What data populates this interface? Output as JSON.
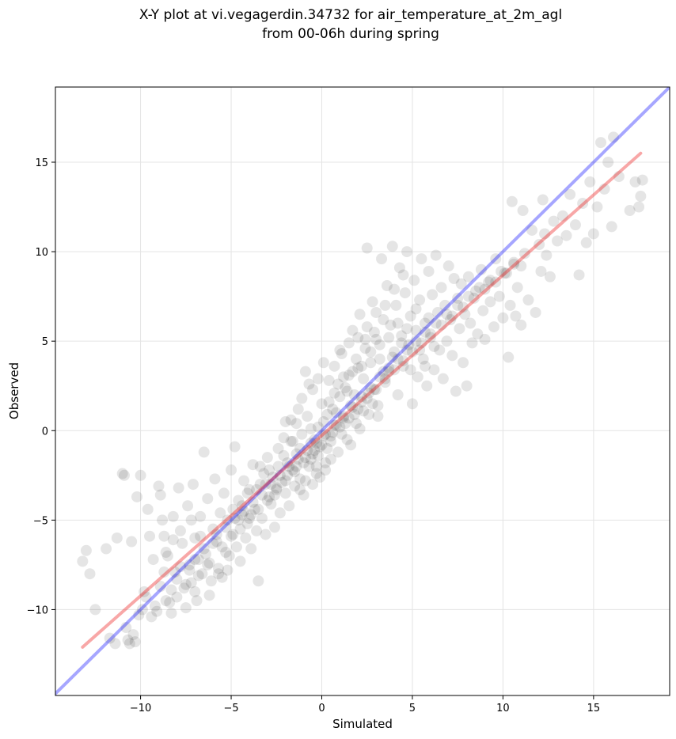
{
  "chart_data": {
    "type": "scatter",
    "title": [
      "X-Y plot at vi.vegagerdin.34732 for air_temperature_at_2m_agl",
      "from 00-06h during spring"
    ],
    "xlabel": "Simulated",
    "ylabel": "Observed",
    "xlim": [
      -14.7,
      19.2
    ],
    "ylim": [
      -14.8,
      19.2
    ],
    "xticks": [
      -10,
      -5,
      0,
      5,
      10,
      15
    ],
    "xtick_labels": [
      "−10",
      "−5",
      "0",
      "5",
      "10",
      "15"
    ],
    "yticks": [
      -10,
      -5,
      0,
      5,
      10,
      15
    ],
    "ytick_labels": [
      "−10",
      "−5",
      "0",
      "5",
      "10",
      "15"
    ],
    "grid": true,
    "marker_color": "#000000",
    "marker_alpha": 0.1,
    "identity_line": {
      "color": "#0000ff",
      "x": [
        -14.7,
        19.2
      ],
      "y": [
        -14.7,
        19.2
      ]
    },
    "fit_line": {
      "color": "#ee2222",
      "x": [
        -13.2,
        17.6
      ],
      "y": [
        -12.1,
        15.5
      ]
    },
    "points": [
      [
        -13.2,
        -7.3
      ],
      [
        -13.0,
        -6.7
      ],
      [
        -12.8,
        -8.0
      ],
      [
        -12.5,
        -10.0
      ],
      [
        -11.9,
        -6.6
      ],
      [
        -11.7,
        -11.6
      ],
      [
        -11.4,
        -11.9
      ],
      [
        -11.3,
        -6.0
      ],
      [
        -11.0,
        -2.4
      ],
      [
        -10.9,
        -2.5
      ],
      [
        -10.8,
        -11.0
      ],
      [
        -10.7,
        -11.7
      ],
      [
        -10.6,
        -11.9
      ],
      [
        -10.4,
        -11.4
      ],
      [
        -10.3,
        -11.8
      ],
      [
        -10.5,
        -6.2
      ],
      [
        -10.2,
        -3.7
      ],
      [
        -10.1,
        -10.3
      ],
      [
        -10.0,
        -2.5
      ],
      [
        -9.8,
        -9.0
      ],
      [
        -9.6,
        -4.4
      ],
      [
        -9.5,
        -5.9
      ],
      [
        -9.3,
        -7.2
      ],
      [
        -9.1,
        -10.1
      ],
      [
        -9.0,
        -3.1
      ],
      [
        -8.9,
        -3.6
      ],
      [
        -8.8,
        -5.0
      ],
      [
        -8.7,
        -5.9
      ],
      [
        -8.6,
        -6.8
      ],
      [
        -8.5,
        -7.0
      ],
      [
        -8.4,
        -9.6
      ],
      [
        -8.3,
        -10.2
      ],
      [
        -8.2,
        -4.8
      ],
      [
        -8.1,
        -7.9
      ],
      [
        -8.0,
        -9.3
      ],
      [
        -7.9,
        -3.2
      ],
      [
        -7.8,
        -5.6
      ],
      [
        -7.7,
        -6.3
      ],
      [
        -7.6,
        -8.8
      ],
      [
        -7.5,
        -9.9
      ],
      [
        -7.4,
        -4.2
      ],
      [
        -7.3,
        -7.5
      ],
      [
        -7.2,
        -8.5
      ],
      [
        -7.1,
        -3.0
      ],
      [
        -7.0,
        -6.0
      ],
      [
        -6.9,
        -9.5
      ],
      [
        -6.8,
        -7.2
      ],
      [
        -6.7,
        -4.8
      ],
      [
        -6.6,
        -8.0
      ],
      [
        -6.5,
        -1.2
      ],
      [
        -6.4,
        -6.9
      ],
      [
        -6.3,
        -3.8
      ],
      [
        -6.2,
        -7.4
      ],
      [
        -6.1,
        -8.4
      ],
      [
        -6.0,
        -5.5
      ],
      [
        -5.9,
        -2.7
      ],
      [
        -5.8,
        -6.2
      ],
      [
        -5.7,
        -7.7
      ],
      [
        -5.6,
        -4.6
      ],
      [
        -5.5,
        -8.2
      ],
      [
        -5.4,
        -3.5
      ],
      [
        -5.3,
        -6.8
      ],
      [
        -5.2,
        -5.0
      ],
      [
        -5.1,
        -7.0
      ],
      [
        -5.0,
        -2.2
      ],
      [
        -4.9,
        -5.8
      ],
      [
        -4.8,
        -0.9
      ],
      [
        -4.7,
        -6.5
      ],
      [
        -4.6,
        -3.9
      ],
      [
        -4.5,
        -7.3
      ],
      [
        -4.4,
        -4.7
      ],
      [
        -4.3,
        -2.8
      ],
      [
        -4.2,
        -6.0
      ],
      [
        -4.1,
        -5.2
      ],
      [
        -4.0,
        -3.3
      ],
      [
        -3.9,
        -6.6
      ],
      [
        -3.8,
        -1.9
      ],
      [
        -3.7,
        -4.4
      ],
      [
        -3.6,
        -5.6
      ],
      [
        -3.5,
        -8.4
      ],
      [
        -3.4,
        -3.0
      ],
      [
        -3.3,
        -4.9
      ],
      [
        -3.2,
        -2.4
      ],
      [
        -3.1,
        -5.8
      ],
      [
        -3.0,
        -1.5
      ],
      [
        -2.9,
        -3.7
      ],
      [
        -2.8,
        -4.1
      ],
      [
        -2.7,
        -2.6
      ],
      [
        -2.6,
        -5.4
      ],
      [
        -2.5,
        -3.2
      ],
      [
        -2.4,
        -1.0
      ],
      [
        -2.3,
        -4.6
      ],
      [
        -2.2,
        -2.9
      ],
      [
        -2.1,
        -0.4
      ],
      [
        -2.0,
        -3.5
      ],
      [
        -1.9,
        -1.8
      ],
      [
        -1.8,
        -4.2
      ],
      [
        -1.7,
        0.6
      ],
      [
        -1.6,
        -2.2
      ],
      [
        -1.5,
        -3.1
      ],
      [
        -1.4,
        -1.3
      ],
      [
        -1.3,
        1.2
      ],
      [
        -1.2,
        -2.7
      ],
      [
        -1.1,
        -0.2
      ],
      [
        -1.0,
        -3.6
      ],
      [
        -0.9,
        -1.5
      ],
      [
        -0.8,
        0.8
      ],
      [
        -0.7,
        -2.0
      ],
      [
        -0.6,
        -0.7
      ],
      [
        -0.5,
        2.3
      ],
      [
        -0.4,
        -1.1
      ],
      [
        -0.3,
        -2.4
      ],
      [
        -0.2,
        0.2
      ],
      [
        -0.1,
        -0.9
      ],
      [
        0.0,
        1.5
      ],
      [
        0.1,
        -0.3
      ],
      [
        0.2,
        -1.8
      ],
      [
        0.3,
        0.9
      ],
      [
        0.4,
        2.8
      ],
      [
        0.5,
        -0.6
      ],
      [
        0.6,
        1.2
      ],
      [
        0.7,
        3.6
      ],
      [
        0.8,
        0.3
      ],
      [
        0.9,
        -1.2
      ],
      [
        1.0,
        1.9
      ],
      [
        1.1,
        4.3
      ],
      [
        1.2,
        0.7
      ],
      [
        1.3,
        2.4
      ],
      [
        1.4,
        -0.5
      ],
      [
        1.5,
        3.1
      ],
      [
        1.6,
        1.4
      ],
      [
        1.7,
        5.6
      ],
      [
        1.8,
        2.0
      ],
      [
        1.9,
        0.4
      ],
      [
        2.0,
        3.5
      ],
      [
        2.1,
        6.5
      ],
      [
        2.2,
        1.6
      ],
      [
        2.3,
        2.9
      ],
      [
        2.4,
        4.6
      ],
      [
        2.5,
        10.2
      ],
      [
        2.6,
        0.9
      ],
      [
        2.7,
        3.8
      ],
      [
        2.8,
        7.2
      ],
      [
        2.9,
        2.3
      ],
      [
        3.0,
        5.1
      ],
      [
        3.1,
        1.4
      ],
      [
        3.2,
        4.0
      ],
      [
        3.3,
        9.6
      ],
      [
        3.4,
        6.2
      ],
      [
        3.5,
        2.7
      ],
      [
        3.6,
        8.1
      ],
      [
        3.7,
        3.3
      ],
      [
        3.8,
        5.9
      ],
      [
        3.9,
        10.3
      ],
      [
        4.0,
        4.4
      ],
      [
        4.1,
        7.0
      ],
      [
        4.2,
        2.0
      ],
      [
        4.3,
        9.1
      ],
      [
        4.4,
        5.3
      ],
      [
        4.5,
        3.6
      ],
      [
        4.6,
        7.7
      ],
      [
        4.7,
        10.0
      ],
      [
        4.8,
        4.8
      ],
      [
        4.9,
        6.4
      ],
      [
        5.0,
        1.5
      ],
      [
        5.1,
        8.4
      ],
      [
        5.2,
        5.6
      ],
      [
        5.3,
        3.0
      ],
      [
        5.4,
        7.3
      ],
      [
        5.5,
        9.6
      ],
      [
        5.6,
        4.0
      ],
      [
        5.7,
        6.0
      ],
      [
        5.8,
        2.5
      ],
      [
        5.9,
        8.9
      ],
      [
        6.0,
        5.2
      ],
      [
        6.1,
        7.6
      ],
      [
        6.2,
        3.4
      ],
      [
        6.3,
        9.8
      ],
      [
        6.4,
        6.6
      ],
      [
        6.5,
        4.5
      ],
      [
        6.6,
        8.0
      ],
      [
        6.7,
        2.9
      ],
      [
        6.8,
        7.0
      ],
      [
        6.9,
        5.0
      ],
      [
        7.0,
        9.2
      ],
      [
        7.1,
        6.2
      ],
      [
        7.2,
        4.2
      ],
      [
        7.3,
        8.5
      ],
      [
        7.4,
        2.2
      ],
      [
        7.5,
        7.4
      ],
      [
        7.6,
        5.7
      ],
      [
        7.7,
        8.2
      ],
      [
        7.8,
        3.8
      ],
      [
        7.9,
        6.5
      ],
      [
        8.0,
        2.5
      ],
      [
        8.1,
        8.6
      ],
      [
        8.2,
        6.0
      ],
      [
        8.3,
        4.9
      ],
      [
        8.5,
        7.8
      ],
      [
        8.6,
        5.4
      ],
      [
        8.8,
        9.0
      ],
      [
        8.9,
        6.7
      ],
      [
        9.0,
        5.1
      ],
      [
        9.2,
        8.3
      ],
      [
        9.3,
        7.2
      ],
      [
        9.5,
        5.8
      ],
      [
        9.6,
        9.6
      ],
      [
        9.8,
        7.5
      ],
      [
        10.0,
        6.3
      ],
      [
        10.1,
        8.8
      ],
      [
        10.3,
        4.1
      ],
      [
        10.4,
        7.0
      ],
      [
        10.5,
        12.8
      ],
      [
        10.6,
        9.4
      ],
      [
        10.7,
        6.4
      ],
      [
        10.8,
        8.0
      ],
      [
        11.0,
        5.9
      ],
      [
        11.1,
        12.3
      ],
      [
        11.2,
        9.9
      ],
      [
        11.4,
        7.3
      ],
      [
        11.6,
        11.2
      ],
      [
        11.8,
        6.6
      ],
      [
        12.0,
        10.4
      ],
      [
        12.1,
        8.9
      ],
      [
        12.2,
        12.9
      ],
      [
        12.3,
        11.0
      ],
      [
        12.4,
        9.8
      ],
      [
        12.6,
        8.6
      ],
      [
        12.8,
        11.7
      ],
      [
        13.0,
        10.6
      ],
      [
        13.3,
        12.0
      ],
      [
        13.5,
        10.9
      ],
      [
        13.7,
        13.2
      ],
      [
        14.0,
        11.5
      ],
      [
        14.2,
        8.7
      ],
      [
        14.4,
        12.7
      ],
      [
        14.6,
        10.5
      ],
      [
        14.8,
        13.9
      ],
      [
        15.0,
        11.0
      ],
      [
        15.2,
        12.5
      ],
      [
        15.4,
        16.1
      ],
      [
        15.6,
        13.5
      ],
      [
        15.8,
        15.0
      ],
      [
        16.0,
        11.4
      ],
      [
        16.1,
        16.4
      ],
      [
        16.4,
        14.2
      ],
      [
        17.0,
        12.3
      ],
      [
        17.3,
        13.9
      ],
      [
        17.5,
        12.5
      ],
      [
        17.6,
        13.1
      ],
      [
        17.7,
        14.0
      ],
      [
        -9.9,
        -10.0
      ],
      [
        -9.7,
        -9.3
      ],
      [
        -9.4,
        -10.4
      ],
      [
        -9.2,
        -9.8
      ],
      [
        -8.9,
        -8.7
      ],
      [
        -8.6,
        -9.5
      ],
      [
        -8.3,
        -8.9
      ],
      [
        -8.0,
        -8.3
      ],
      [
        -7.8,
        -7.6
      ],
      [
        -7.5,
        -8.6
      ],
      [
        -7.3,
        -7.8
      ],
      [
        -7.0,
        -7.2
      ],
      [
        -6.8,
        -8.1
      ],
      [
        -6.5,
        -6.6
      ],
      [
        -6.3,
        -7.5
      ],
      [
        -6.0,
        -6.3
      ],
      [
        -5.8,
        -5.8
      ],
      [
        -5.5,
        -6.5
      ],
      [
        -5.3,
        -5.4
      ],
      [
        -5.0,
        -5.9
      ],
      [
        -4.8,
        -4.9
      ],
      [
        -4.5,
        -5.5
      ],
      [
        -4.3,
        -4.5
      ],
      [
        -4.0,
        -4.9
      ],
      [
        -3.8,
        -4.0
      ],
      [
        -3.5,
        -4.4
      ],
      [
        -3.3,
        -3.6
      ],
      [
        -3.0,
        -3.9
      ],
      [
        -2.8,
        -3.0
      ],
      [
        -2.5,
        -3.3
      ],
      [
        -2.3,
        -2.5
      ],
      [
        -2.0,
        -2.8
      ],
      [
        -1.8,
        -2.0
      ],
      [
        -1.5,
        -2.3
      ],
      [
        -1.3,
        -1.6
      ],
      [
        -1.0,
        -1.8
      ],
      [
        -0.8,
        -1.1
      ],
      [
        -0.5,
        -1.3
      ],
      [
        -0.3,
        -0.7
      ],
      [
        0.0,
        -0.8
      ],
      [
        0.2,
        -0.2
      ],
      [
        0.5,
        -0.3
      ],
      [
        0.7,
        0.3
      ],
      [
        1.0,
        0.2
      ],
      [
        1.2,
        0.8
      ],
      [
        1.5,
        0.7
      ],
      [
        1.7,
        1.3
      ],
      [
        2.0,
        1.2
      ],
      [
        2.2,
        1.9
      ],
      [
        2.5,
        1.8
      ],
      [
        2.7,
        2.4
      ],
      [
        3.0,
        2.3
      ],
      [
        3.2,
        3.0
      ],
      [
        3.5,
        2.9
      ],
      [
        3.7,
        3.5
      ],
      [
        4.0,
        3.4
      ],
      [
        4.2,
        4.0
      ],
      [
        4.5,
        3.9
      ],
      [
        4.7,
        4.5
      ],
      [
        5.0,
        4.4
      ],
      [
        5.2,
        5.0
      ],
      [
        5.5,
        4.9
      ],
      [
        5.7,
        5.5
      ],
      [
        6.0,
        5.4
      ],
      [
        6.3,
        6.0
      ],
      [
        6.6,
        5.9
      ],
      [
        6.9,
        6.5
      ],
      [
        7.2,
        6.4
      ],
      [
        7.5,
        7.0
      ],
      [
        7.8,
        6.9
      ],
      [
        8.1,
        7.5
      ],
      [
        8.4,
        7.4
      ],
      [
        8.7,
        8.0
      ],
      [
        9.0,
        7.9
      ],
      [
        9.3,
        8.4
      ],
      [
        9.6,
        8.3
      ],
      [
        9.9,
        8.9
      ],
      [
        10.2,
        8.8
      ],
      [
        10.6,
        9.3
      ],
      [
        11.0,
        9.2
      ],
      [
        -0.6,
        0.1
      ],
      [
        -0.4,
        -0.5
      ],
      [
        -0.2,
        -1.4
      ],
      [
        0.1,
        0.5
      ],
      [
        0.3,
        -1.0
      ],
      [
        0.6,
        -0.1
      ],
      [
        0.8,
        1.0
      ],
      [
        1.1,
        -0.2
      ],
      [
        1.3,
        0.4
      ],
      [
        1.6,
        -0.8
      ],
      [
        1.8,
        0.9
      ],
      [
        2.1,
        0.1
      ],
      [
        2.3,
        1.1
      ],
      [
        2.6,
        2.1
      ],
      [
        2.8,
        1.5
      ],
      [
        3.1,
        0.8
      ],
      [
        -1.2,
        -1.0
      ],
      [
        -1.4,
        -2.0
      ],
      [
        -1.6,
        -0.6
      ],
      [
        -1.9,
        -2.5
      ],
      [
        -2.1,
        -1.4
      ],
      [
        -2.4,
        -2.0
      ],
      [
        -2.6,
        -3.6
      ],
      [
        -2.9,
        -2.2
      ],
      [
        -3.1,
        -3.0
      ],
      [
        -3.4,
        -2.0
      ],
      [
        -3.6,
        -3.3
      ],
      [
        -3.9,
        -4.7
      ],
      [
        -4.1,
        -3.5
      ],
      [
        -4.4,
        -4.2
      ],
      [
        -4.6,
        -5.0
      ],
      [
        -4.9,
        -4.4
      ],
      [
        0.4,
        1.6
      ],
      [
        0.7,
        2.1
      ],
      [
        0.9,
        2.6
      ],
      [
        1.2,
        3.0
      ],
      [
        1.4,
        2.2
      ],
      [
        1.7,
        3.3
      ],
      [
        1.9,
        4.0
      ],
      [
        2.2,
        3.6
      ],
      [
        2.4,
        5.1
      ],
      [
        2.7,
        4.4
      ],
      [
        2.9,
        5.5
      ],
      [
        3.2,
        4.8
      ],
      [
        3.4,
        3.3
      ],
      [
        3.7,
        5.2
      ],
      [
        3.9,
        4.1
      ],
      [
        4.2,
        6.0
      ],
      [
        4.4,
        4.9
      ],
      [
        4.7,
        5.7
      ],
      [
        4.9,
        3.4
      ],
      [
        5.2,
        6.8
      ],
      [
        5.4,
        4.5
      ],
      [
        5.7,
        3.6
      ],
      [
        5.9,
        6.3
      ],
      [
        6.2,
        4.7
      ],
      [
        -0.2,
        2.9
      ],
      [
        0.1,
        3.8
      ],
      [
        -0.7,
        2.6
      ],
      [
        -0.9,
        3.3
      ],
      [
        -1.1,
        1.8
      ],
      [
        -1.4,
        0.4
      ],
      [
        -1.7,
        -0.6
      ],
      [
        -2.0,
        0.5
      ],
      [
        -0.3,
        -2.0
      ],
      [
        -0.6,
        -1.6
      ],
      [
        -0.9,
        -2.8
      ],
      [
        -1.2,
        -3.3
      ],
      [
        -0.1,
        -2.6
      ],
      [
        0.2,
        -2.2
      ],
      [
        0.5,
        -1.6
      ],
      [
        -0.5,
        -3.0
      ],
      [
        1.0,
        4.5
      ],
      [
        1.5,
        4.9
      ],
      [
        2.0,
        5.2
      ],
      [
        2.5,
        5.8
      ],
      [
        3.0,
        6.6
      ],
      [
        3.5,
        7.0
      ],
      [
        4.0,
        7.9
      ],
      [
        4.5,
        8.7
      ],
      [
        -7.0,
        -9.0
      ],
      [
        -6.2,
        -9.2
      ],
      [
        -5.7,
        -8.0
      ],
      [
        -5.2,
        -7.8
      ],
      [
        -6.7,
        -5.9
      ],
      [
        -7.2,
        -5.0
      ],
      [
        -8.2,
        -6.1
      ],
      [
        -8.7,
        -7.9
      ]
    ]
  }
}
